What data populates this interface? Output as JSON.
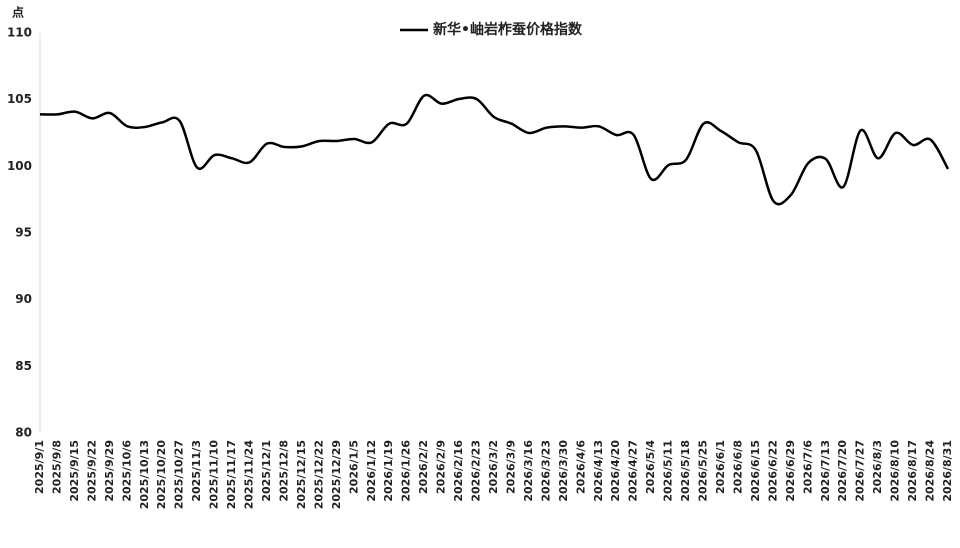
{
  "chart_data": {
    "type": "line",
    "y_label": "点",
    "categories": [
      "2025/9/1",
      "2025/9/8",
      "2025/9/15",
      "2025/9/22",
      "2025/9/29",
      "2025/10/6",
      "2025/10/13",
      "2025/10/20",
      "2025/10/27",
      "2025/11/3",
      "2025/11/10",
      "2025/11/17",
      "2025/11/24",
      "2025/12/1",
      "2025/12/8",
      "2025/12/15",
      "2025/12/22",
      "2025/12/29",
      "2026/1/5",
      "2026/1/12",
      "2026/1/19",
      "2026/1/26",
      "2026/2/2",
      "2026/2/9",
      "2026/2/16",
      "2026/2/23",
      "2026/3/2",
      "2026/3/9",
      "2026/3/16",
      "2026/3/23",
      "2026/3/30",
      "2026/4/6",
      "2026/4/13",
      "2026/4/20",
      "2026/4/27",
      "2026/5/4",
      "2026/5/11",
      "2026/5/18",
      "2026/5/25",
      "2026/6/1",
      "2026/6/8",
      "2026/6/15",
      "2026/6/22",
      "2026/6/29",
      "2026/7/6",
      "2026/7/13",
      "2026/7/20",
      "2026/7/27",
      "2026/8/3",
      "2026/8/10",
      "2026/8/17",
      "2026/8/24",
      "2026/8/31"
    ],
    "series": [
      {
        "name": "新华•岫岩柞蚕价格指数",
        "color": "#000000",
        "values": [
          103.9,
          103.9,
          104.1,
          103.6,
          104.0,
          103.0,
          102.95,
          103.3,
          103.4,
          99.9,
          100.85,
          100.6,
          100.3,
          101.7,
          101.45,
          101.5,
          101.9,
          101.9,
          102.05,
          101.8,
          103.2,
          103.2,
          105.3,
          104.7,
          105.05,
          105.05,
          103.7,
          103.2,
          102.5,
          102.9,
          103.0,
          102.9,
          103.0,
          102.35,
          102.35,
          99.05,
          100.1,
          100.5,
          103.2,
          102.65,
          101.8,
          101.2,
          97.4,
          97.85,
          100.25,
          100.55,
          98.45,
          102.7,
          100.6,
          102.5,
          101.6,
          102.0,
          99.8
        ]
      }
    ],
    "ylim": [
      80,
      110
    ],
    "yticks": [
      80,
      85,
      90,
      95,
      100,
      105,
      110
    ],
    "grid": false,
    "smooth": true,
    "legend": "top"
  }
}
